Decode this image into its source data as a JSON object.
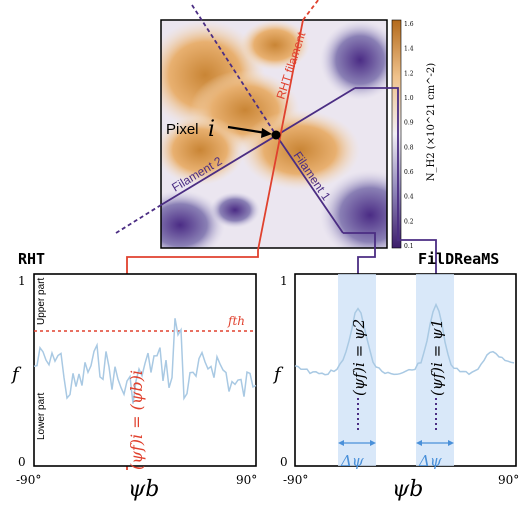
{
  "map": {
    "colorbar_label": "N_H2 (×10^21 cm^-2)",
    "colorbar_ticks": [
      "1.6",
      "1.4",
      "1.2",
      "1.0",
      "0.9",
      "0.8",
      "0.6",
      "0.4",
      "0.2",
      "0.1"
    ],
    "labels": {
      "rht_filament": "RHT filament",
      "filament_1": "Filament 1",
      "filament_2": "Filament 2",
      "pixel": "Pixel",
      "pixel_index": "i"
    },
    "colors": {
      "rht": "#e0412e",
      "fildreams": "#4b2d83",
      "ridge": "#c07a33"
    }
  },
  "left_panel": {
    "title": "RHT",
    "y_axis_label": "f",
    "y_top": "1",
    "y_bottom": "0",
    "x_left": "-90°",
    "x_right": "90°",
    "x_axis_label": "ψb",
    "upper_label": "Upper part",
    "lower_label": "Lower part",
    "threshold_label": "fth",
    "vertical_label": "(ψf)i = (ψb)i"
  },
  "right_panel": {
    "title": "FilDReaMS",
    "y_axis_label": "f",
    "y_top": "1",
    "y_bottom": "0",
    "x_left": "-90°",
    "x_right": "90°",
    "x_axis_label": "ψb",
    "peak2_label": "(ψf)i = ψ2",
    "peak1_label": "(ψf)i = ψ1",
    "delta_label": "Δψ",
    "band_color": "#cfe2f7"
  }
}
